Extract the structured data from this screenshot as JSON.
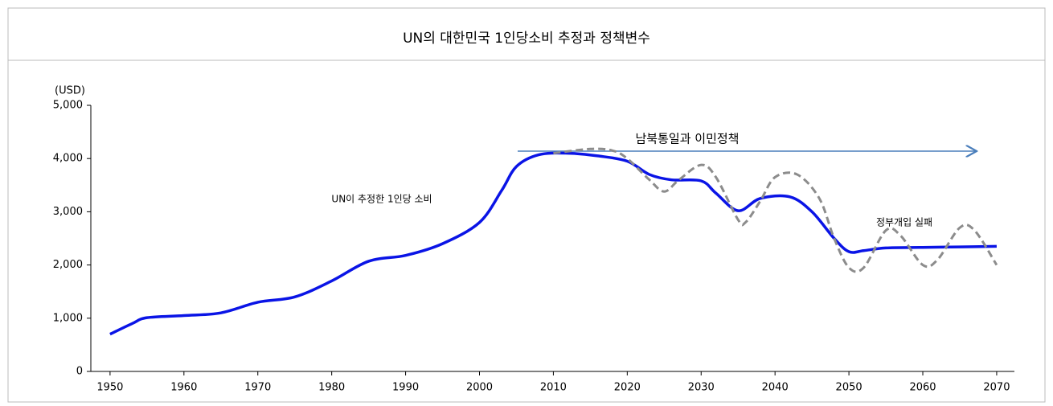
{
  "chart_data": {
    "type": "line",
    "title": "UN의 대한민국 1인당소비 추정과 정책변수",
    "y_label": "(USD)",
    "annotations": [
      "남북통일과 이민정책",
      "UN이 추정한 1인당 소비",
      "정부개입 실패"
    ],
    "xlim": [
      1947.4,
      2072.4
    ],
    "xticks": [
      1950,
      1960,
      1970,
      1980,
      1990,
      2000,
      2010,
      2020,
      2030,
      2040,
      2050,
      2060,
      2070
    ],
    "ylim": [
      0,
      5000
    ],
    "yticks": [
      0,
      {
        "value": 1000,
        "label": "1,000"
      },
      {
        "value": 2000,
        "label": "2,000"
      },
      {
        "value": 3000,
        "label": "3,000"
      },
      {
        "value": 4000,
        "label": "4,000"
      },
      {
        "value": 5000,
        "label": "5,000"
      }
    ],
    "series": [
      {
        "color": "#0a14e6",
        "dash": false,
        "x": [
          1950,
          1953,
          1955,
          1960,
          1965,
          1970,
          1975,
          1980,
          1985,
          1990,
          1995,
          2000,
          2003,
          2005,
          2008,
          2012,
          2016,
          2020,
          2023,
          2026,
          2030,
          2032,
          2035,
          2038,
          2042,
          2045,
          2048,
          2050,
          2052,
          2055,
          2060,
          2065,
          2070
        ],
        "values": [
          700,
          900,
          1010,
          1050,
          1100,
          1300,
          1400,
          1700,
          2070,
          2180,
          2400,
          2800,
          3400,
          3850,
          4070,
          4100,
          4050,
          3950,
          3700,
          3600,
          3580,
          3350,
          3020,
          3250,
          3280,
          3000,
          2500,
          2250,
          2270,
          2320,
          2330,
          2340,
          2350
        ]
      },
      {
        "color": "#8c8c8c",
        "dash": true,
        "x": [
          2010,
          2015,
          2018,
          2020,
          2023,
          2025,
          2027,
          2030,
          2032,
          2035,
          2036,
          2038,
          2040,
          2043,
          2046,
          2048,
          2050,
          2052,
          2055,
          2057,
          2060,
          2062,
          2065,
          2067,
          2070
        ],
        "values": [
          4100,
          4180,
          4150,
          4000,
          3600,
          3380,
          3600,
          3880,
          3650,
          2850,
          2800,
          3200,
          3650,
          3700,
          3250,
          2500,
          1950,
          1950,
          2650,
          2550,
          2000,
          2100,
          2700,
          2650,
          2000
        ]
      }
    ]
  }
}
